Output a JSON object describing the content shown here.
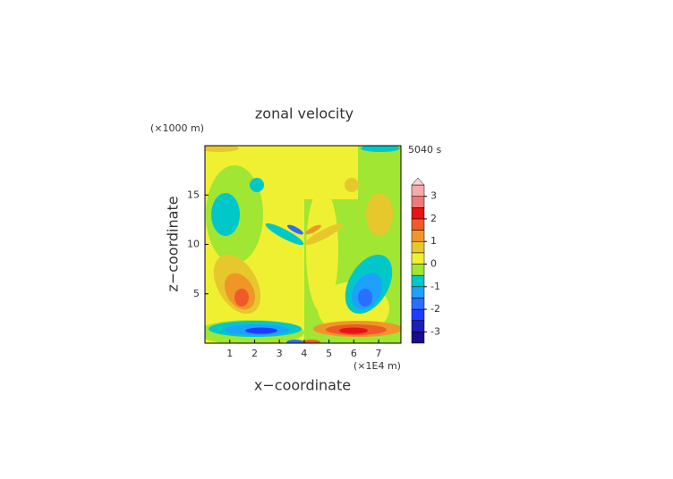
{
  "chart_data": {
    "type": "contour",
    "title": "zonal velocity",
    "time_label": "5040 s",
    "xlabel": "x−coordinate",
    "ylabel": "z−coordinate",
    "x_unit": "(×1E4 m)",
    "y_unit": "(×1000 m)",
    "xlim": [
      0,
      7.9
    ],
    "ylim": [
      0,
      20
    ],
    "xticks": [
      1,
      2,
      3,
      4,
      5,
      6,
      7
    ],
    "yticks": [
      5,
      10,
      15
    ],
    "colorbar": {
      "levels": [
        -3.5,
        -3,
        -2.5,
        -2,
        -1.5,
        -1,
        -0.5,
        0,
        0.5,
        1,
        1.5,
        2,
        2.5,
        3,
        3.5
      ],
      "colors": [
        "#1a0a8c",
        "#1e1eb4",
        "#1e3cff",
        "#2a6eff",
        "#1ea0ff",
        "#00c8c8",
        "#a0e632",
        "#f0f032",
        "#e6c82d",
        "#f09628",
        "#f05a28",
        "#e61414",
        "#f07878",
        "#f8aaaa",
        "#fcd2d2"
      ],
      "ticks": [
        -3,
        -2,
        -1,
        0,
        1,
        2,
        3
      ]
    }
  }
}
